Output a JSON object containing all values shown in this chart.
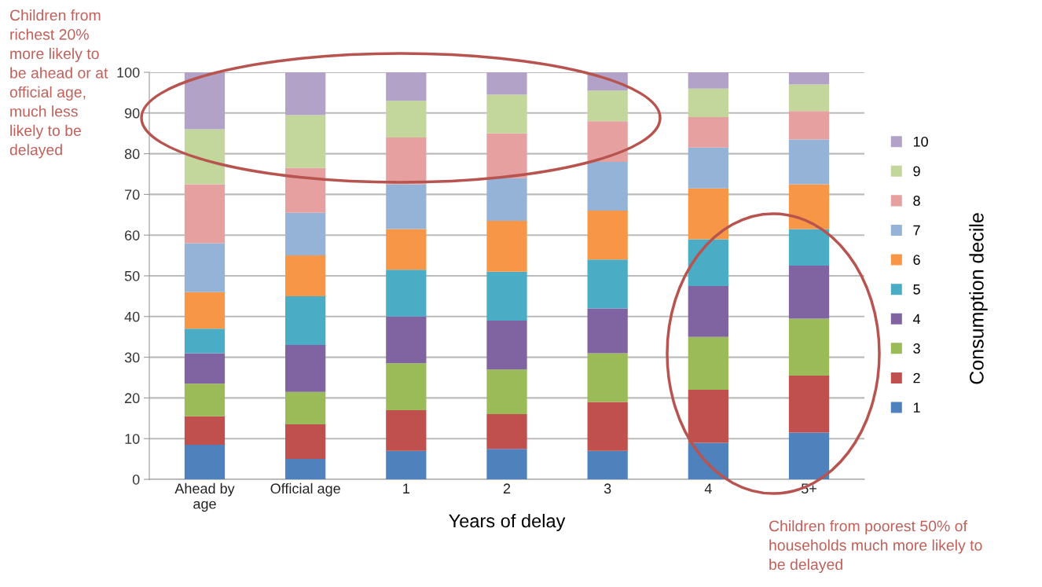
{
  "chart_data": {
    "type": "bar",
    "stacked": true,
    "categories": [
      "Ahead by\nage",
      "Official age",
      "1",
      "2",
      "3",
      "4",
      "5+"
    ],
    "xlabel": "Years of delay",
    "legend_title": "Consumption decile",
    "ylim": [
      0,
      100
    ],
    "yticks": [
      0,
      10,
      20,
      30,
      40,
      50,
      60,
      70,
      80,
      90,
      100
    ],
    "grid": "y",
    "legend": "right",
    "series": [
      {
        "name": "1",
        "color": "#4f81bd",
        "values": [
          8.5,
          5,
          7,
          7.5,
          7,
          9,
          11.5
        ]
      },
      {
        "name": "2",
        "color": "#c0504d",
        "values": [
          7,
          8.5,
          10,
          8.5,
          12,
          13,
          14
        ]
      },
      {
        "name": "3",
        "color": "#9bbb59",
        "values": [
          8,
          8,
          11.5,
          11,
          12,
          13,
          14
        ]
      },
      {
        "name": "4",
        "color": "#8064a2",
        "values": [
          7.5,
          11.5,
          11.5,
          12,
          11,
          12.5,
          13
        ]
      },
      {
        "name": "5",
        "color": "#4bacc6",
        "values": [
          6,
          12,
          11.5,
          12,
          12,
          11.5,
          9
        ]
      },
      {
        "name": "6",
        "color": "#f79646",
        "values": [
          9,
          10,
          10,
          12.5,
          12,
          12.5,
          11
        ]
      },
      {
        "name": "7",
        "color": "#95b3d7",
        "values": [
          12,
          10.5,
          11,
          10.5,
          12,
          10,
          11
        ]
      },
      {
        "name": "8",
        "color": "#e6a0a0",
        "values": [
          14.5,
          11,
          11.5,
          11,
          10,
          7.5,
          7
        ]
      },
      {
        "name": "9",
        "color": "#c3d69b",
        "values": [
          13.5,
          13,
          9,
          9.5,
          7.5,
          7,
          6.5
        ]
      },
      {
        "name": "10",
        "color": "#b3a2c7",
        "values": [
          14,
          10.5,
          7,
          5.5,
          4.5,
          4,
          3
        ]
      }
    ],
    "annotations": [
      "Children from\nrichest 20%\nmore likely to\nbe ahead or at\nofficial age,\nmuch less\nlikely to be\ndelayed",
      "Children from poorest 50% of\nhouseholds much more likely to\nbe delayed"
    ]
  }
}
